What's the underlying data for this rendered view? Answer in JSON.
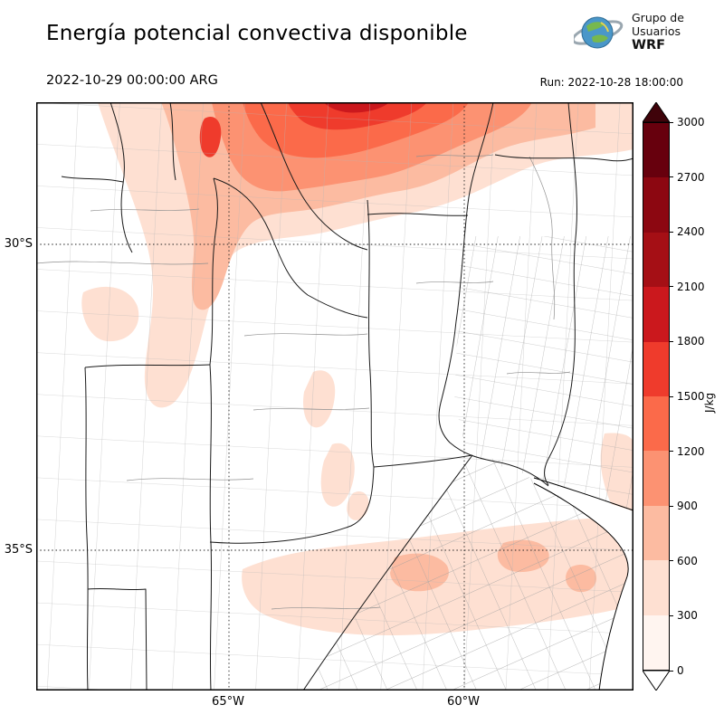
{
  "header": {
    "title": "Energía potencial convectiva disponible",
    "logo": {
      "line1": "Grupo de",
      "line2": "Usuarios",
      "line3": "WRF"
    },
    "valid_time": "2022-10-29 00:00:00 ARG",
    "run_label": "Run: 2022-10-28 18:00:00"
  },
  "map": {
    "lat_ticks": [
      "30°S",
      "35°S"
    ],
    "lon_ticks": [
      "65°W",
      "60°W"
    ]
  },
  "colorbar": {
    "label": "J/kg",
    "ticks_top_to_bottom": [
      "3000",
      "2700",
      "2400",
      "2100",
      "1800",
      "1500",
      "1200",
      "900",
      "600",
      "300",
      "0"
    ],
    "colors_top_to_bottom": [
      "#67000d",
      "#8c0711",
      "#a50f15",
      "#cb181d",
      "#ef3b2c",
      "#fb6a4a",
      "#fc9272",
      "#fcbba1",
      "#fee0d2",
      "#fff5f0"
    ],
    "over_color": "#3f030a",
    "under_color": "#ffffff"
  },
  "chart_data": {
    "type": "heatmap",
    "title": "Energía potencial convectiva disponible",
    "units": "J/kg",
    "valid_time": "2022-10-29 00:00:00 ARG",
    "run_time": "Run: 2022-10-28 18:00:00",
    "colorbar_levels": [
      0,
      300,
      600,
      900,
      1200,
      1500,
      1800,
      2100,
      2400,
      2700,
      3000
    ],
    "lat_gridlines": [
      "30°S",
      "35°S"
    ],
    "lon_gridlines": [
      "65°W",
      "60°W"
    ],
    "legend_position": "right"
  }
}
